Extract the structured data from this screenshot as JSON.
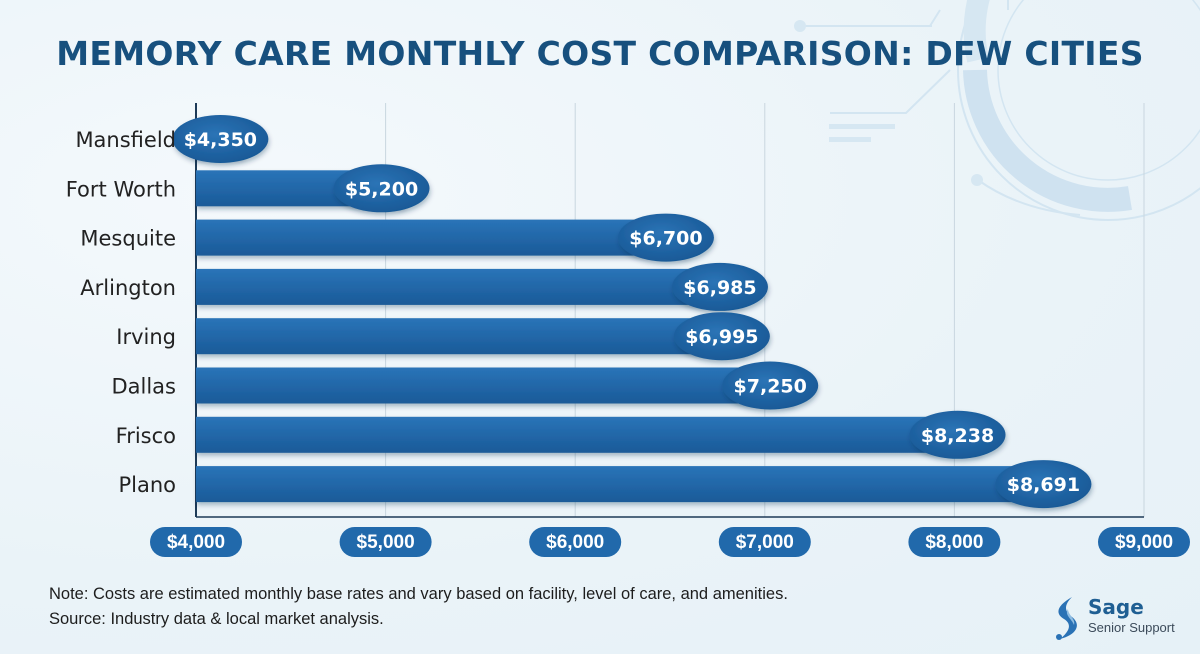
{
  "chart_data": {
    "type": "bar",
    "orientation": "horizontal",
    "title": "MEMORY CARE MONTHLY COST COMPARISON: DFW CITIES",
    "categories": [
      "Mansfield",
      "Fort Worth",
      "Mesquite",
      "Arlington",
      "Irving",
      "Dallas",
      "Frisco",
      "Plano"
    ],
    "values": [
      4350,
      5200,
      6700,
      6985,
      6995,
      7250,
      8238,
      8691
    ],
    "value_labels": [
      "$4,350",
      "$5,200",
      "$6,700",
      "$6,985",
      "$6,995",
      "$7,250",
      "$8,238",
      "$8,691"
    ],
    "xlabel": "",
    "ylabel": "",
    "xlim": [
      4000,
      9000
    ],
    "x_ticks": [
      4000,
      5000,
      6000,
      7000,
      8000,
      9000
    ],
    "x_tick_labels": [
      "$4,000",
      "$5,000",
      "$6,000",
      "$7,000",
      "$8,000",
      "$9,000"
    ],
    "grid": true,
    "legend": "none",
    "colors": {
      "bar": "#1f64a6",
      "bubble": "#1d62a3",
      "tick_pill": "#2169ab",
      "title": "#17507e",
      "grid": "#c9d6df"
    }
  },
  "footer": {
    "note": "Note: Costs are estimated monthly base rates and vary based on facility, level of care, and amenities.",
    "source": "Source: Industry data & local market analysis."
  },
  "logo": {
    "name": "Sage",
    "subtitle": "Senior Support"
  }
}
